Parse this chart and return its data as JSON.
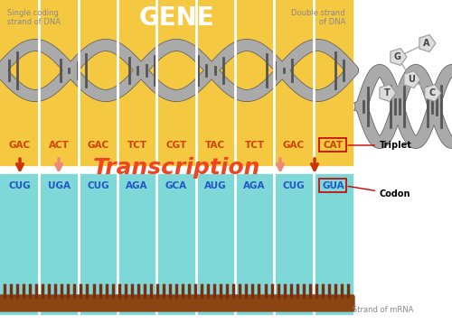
{
  "bg_color": "#ffffff",
  "dna_bg_color": "#f5c842",
  "mrna_bg_color": "#7fd8d8",
  "gene_label": "GENE",
  "gene_color": "#ffffff",
  "gene_fontsize": 20,
  "top_label_left": "Single coding\nstrand of DNA",
  "top_label_right": "Double strand\nof DNA",
  "label_color": "#888888",
  "dna_triplets": [
    "GAC",
    "ACT",
    "GAC",
    "TCT",
    "CGT",
    "TAC",
    "TCT",
    "GAC",
    "CAT"
  ],
  "mrna_codons": [
    "CUG",
    "UGA",
    "CUG",
    "AGA",
    "GCA",
    "AUG",
    "AGA",
    "CUG",
    "GUA"
  ],
  "seq_color": "#cc4400",
  "mrna_seq_color": "#2255cc",
  "transcription_label": "Transcription",
  "transcription_color": "#ee4422",
  "transcription_fontsize": 18,
  "triplet_label": "Triplet",
  "codon_label": "Codon",
  "annotation_color": "#cc0000",
  "strand_mrna_label": "Strand of mRNA",
  "strand_color": "#8B4513",
  "arrow_color_dark": "#cc3300",
  "arrow_color_light": "#ee8877",
  "dna_helix_color": "#aaaaaa",
  "dna_outline_color": "#555555",
  "white_sep_color": "#ffffff"
}
